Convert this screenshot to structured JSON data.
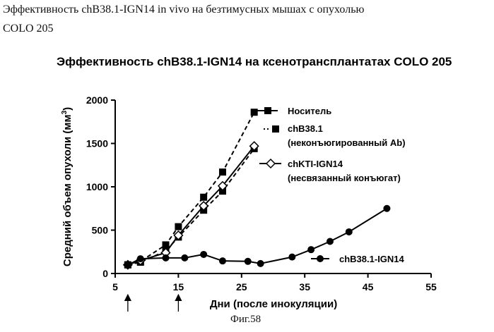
{
  "caption": {
    "line1": "Эффективность chB38.1-IGN14 in vivo на безтимусных мышах с опухолью",
    "line2": "COLO 205"
  },
  "figure_label": "Фиг.58",
  "chart_data": {
    "type": "line",
    "title": "Эффективность chB38.1-IGN14 на ксенотрансплантатах COLO 205",
    "xlabel": "Дни (после инокуляции)",
    "ylabel": "Средний объем опухоли (мм",
    "ylabel_superscript": "3",
    "ylabel_close": ")",
    "xlim": [
      5,
      55
    ],
    "ylim": [
      0,
      2000
    ],
    "x_ticks": [
      5,
      15,
      25,
      35,
      45,
      55
    ],
    "y_ticks": [
      0,
      500,
      1000,
      1500,
      2000
    ],
    "arrow_days": [
      7,
      15
    ],
    "grid": false,
    "legend_position": "inline",
    "series": [
      {
        "name": "Носитель",
        "marker": "filled-square",
        "dash": "dashed",
        "x": [
          7,
          9,
          13,
          15,
          19,
          22,
          27
        ],
        "y": [
          100,
          140,
          330,
          540,
          880,
          1170,
          1860
        ]
      },
      {
        "name": "chB38.1 (неконъюгированный Ab)",
        "name_line1": "chB38.1",
        "name_line2": "(неконъюгированный Ab)",
        "marker": "filled-square",
        "dash": "dashed",
        "x": [
          7,
          9,
          13,
          15,
          19,
          22,
          27
        ],
        "y": [
          100,
          130,
          260,
          420,
          730,
          950,
          1440
        ]
      },
      {
        "name": "chKTI-IGN14 (несвязанный конъюгат)",
        "name_line1": "chKTI-IGN14",
        "name_line2": "(несвязанный конъюгат)",
        "marker": "open-diamond",
        "dash": "solid",
        "x": [
          7,
          9,
          13,
          15,
          19,
          22,
          27
        ],
        "y": [
          100,
          150,
          240,
          440,
          780,
          1010,
          1470
        ]
      },
      {
        "name": "chB38.1-IGN14",
        "marker": "filled-circle",
        "dash": "solid",
        "x": [
          7,
          9,
          13,
          16,
          19,
          22,
          26,
          28,
          33,
          36,
          39,
          42,
          48
        ],
        "y": [
          100,
          170,
          180,
          180,
          220,
          145,
          140,
          115,
          190,
          275,
          370,
          480,
          750
        ]
      }
    ]
  }
}
